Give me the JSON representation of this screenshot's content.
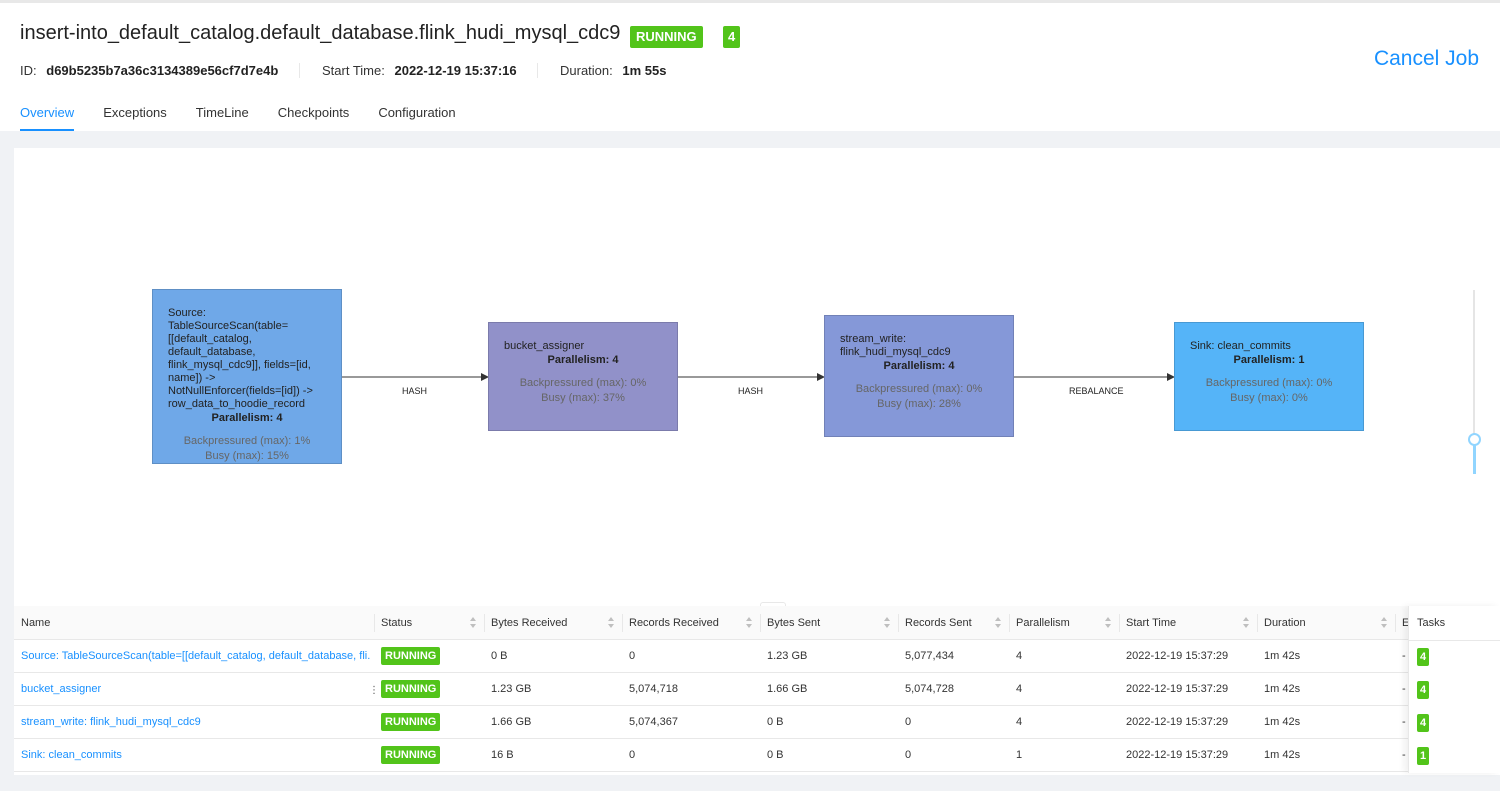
{
  "job": {
    "title": "insert-into_default_catalog.default_database.flink_hudi_mysql_cdc9",
    "status": "RUNNING",
    "task_count": "4",
    "id_label": "ID:",
    "id": "d69b5235b7a36c3134389e56cf7d7e4b",
    "start_time_label": "Start Time:",
    "start_time": "2022-12-19 15:37:16",
    "duration_label": "Duration:",
    "duration": "1m 55s",
    "cancel_label": "Cancel Job"
  },
  "tabs": [
    "Overview",
    "Exceptions",
    "TimeLine",
    "Checkpoints",
    "Configuration"
  ],
  "graph": {
    "nodes": [
      {
        "label": "Source: TableSourceScan(table=[[default_catalog, default_database, flink_mysql_cdc9]], fields=[id, name]) -> NotNullEnforcer(fields=[id]) -> row_data_to_hoodie_record",
        "parallelism": "Parallelism: 4",
        "backpressured": "Backpressured (max): 1%",
        "busy": "Busy (max): 15%",
        "color": "#6fa8e8"
      },
      {
        "label": "bucket_assigner",
        "parallelism": "Parallelism: 4",
        "backpressured": "Backpressured (max): 0%",
        "busy": "Busy (max): 37%",
        "color": "#9191c9"
      },
      {
        "label": "stream_write: flink_hudi_mysql_cdc9",
        "parallelism": "Parallelism: 4",
        "backpressured": "Backpressured (max): 0%",
        "busy": "Busy (max): 28%",
        "color": "#8598d8"
      },
      {
        "label": "Sink: clean_commits",
        "parallelism": "Parallelism: 1",
        "backpressured": "Backpressured (max): 0%",
        "busy": "Busy (max): 0%",
        "color": "#55b4f8"
      }
    ],
    "edges": [
      "HASH",
      "HASH",
      "REBALANCE"
    ]
  },
  "table": {
    "columns": [
      "Name",
      "Status",
      "Bytes Received",
      "Records Received",
      "Bytes Sent",
      "Records Sent",
      "Parallelism",
      "Start Time",
      "Duration",
      "E",
      "Tasks"
    ],
    "rows": [
      {
        "name": "Source: TableSourceScan(table=[[default_catalog, default_database, fli...",
        "status": "RUNNING",
        "bytes_received": "0 B",
        "records_received": "0",
        "bytes_sent": "1.23 GB",
        "records_sent": "5,077,434",
        "parallelism": "4",
        "start_time": "2022-12-19 15:37:29",
        "duration": "1m 42s",
        "end": "-",
        "tasks": "4"
      },
      {
        "name": "bucket_assigner",
        "status": "RUNNING",
        "bytes_received": "1.23 GB",
        "records_received": "5,074,718",
        "bytes_sent": "1.66 GB",
        "records_sent": "5,074,728",
        "parallelism": "4",
        "start_time": "2022-12-19 15:37:29",
        "duration": "1m 42s",
        "end": "-",
        "tasks": "4"
      },
      {
        "name": "stream_write: flink_hudi_mysql_cdc9",
        "status": "RUNNING",
        "bytes_received": "1.66 GB",
        "records_received": "5,074,367",
        "bytes_sent": "0 B",
        "records_sent": "0",
        "parallelism": "4",
        "start_time": "2022-12-19 15:37:29",
        "duration": "1m 42s",
        "end": "-",
        "tasks": "4"
      },
      {
        "name": "Sink: clean_commits",
        "status": "RUNNING",
        "bytes_received": "16 B",
        "records_received": "0",
        "bytes_sent": "0 B",
        "records_sent": "0",
        "parallelism": "1",
        "start_time": "2022-12-19 15:37:29",
        "duration": "1m 42s",
        "end": "-",
        "tasks": "1"
      }
    ]
  },
  "colors": {
    "accent": "#1890ff",
    "running": "#52c41a"
  }
}
